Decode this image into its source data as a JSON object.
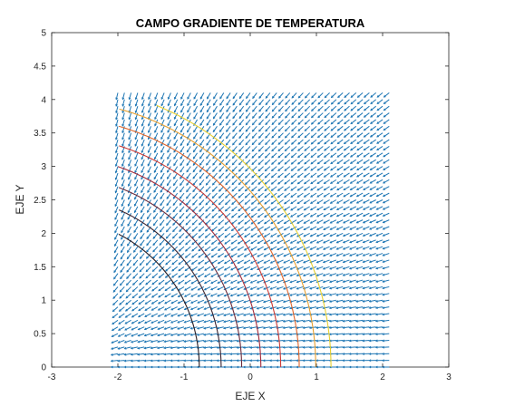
{
  "chart_data": {
    "type": "quiver-contour",
    "title": "CAMPO GRADIENTE DE TEMPERATURA",
    "xlabel": "EJE X",
    "ylabel": "EJE Y",
    "xlim": [
      -3,
      3
    ],
    "ylim": [
      0,
      5
    ],
    "xticks": [
      "-3",
      "-2",
      "-1",
      "0",
      "1",
      "2",
      "3"
    ],
    "yticks": [
      "0",
      "0.5",
      "1",
      "1.5",
      "2",
      "2.5",
      "3",
      "3.5",
      "4",
      "4.5",
      "5"
    ],
    "grid": false,
    "field_domain": {
      "x": [
        -2,
        2.1
      ],
      "y": [
        0,
        4.1
      ],
      "step": 0.1
    },
    "arrow_color": "#1f77b4",
    "contours": [
      {
        "r": 2.23,
        "color": "#2a1e24"
      },
      {
        "r": 2.56,
        "color": "#3a2430"
      },
      {
        "r": 2.87,
        "color": "#6b2a3a"
      },
      {
        "r": 3.16,
        "color": "#a32a3a"
      },
      {
        "r": 3.46,
        "color": "#cc3a35"
      },
      {
        "r": 3.74,
        "color": "#e0652a"
      },
      {
        "r": 3.99,
        "color": "#e8a030"
      },
      {
        "r": 4.22,
        "color": "#e8d030"
      }
    ]
  }
}
